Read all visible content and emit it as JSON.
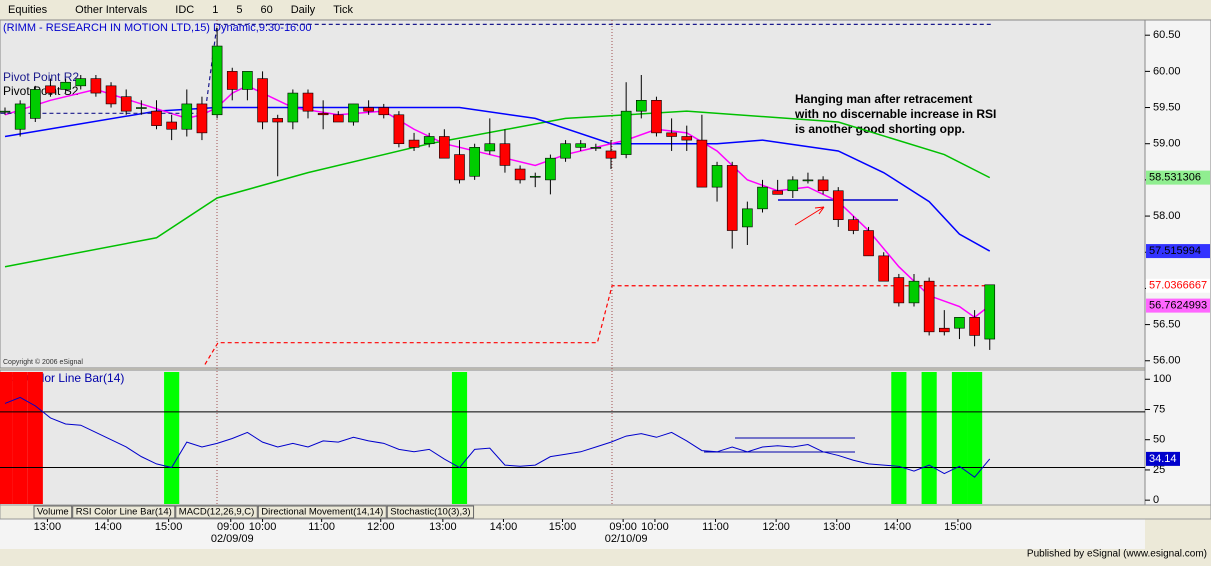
{
  "toolbar": {
    "items": [
      "Equities",
      "Other Intervals",
      "IDC",
      "1",
      "5",
      "60",
      "Daily",
      "Tick"
    ]
  },
  "chart_data": {
    "type": "candlestick",
    "title": "(RIMM - RESEARCH IN MOTION LTD,15) Dynamic,9:30-16:00",
    "copyright": "Copyright © 2006 eSignal",
    "annotation": [
      "Hanging man after retracement",
      "with no discernable increase in RSI",
      "is another good shorting opp."
    ],
    "pivot_labels": [
      "Pivot Point R2",
      "Pivot Point S2"
    ],
    "up_color": "#00cc00",
    "down_color": "#ff0000",
    "ylim": [
      55.9,
      60.71
    ],
    "yticks": [
      {
        "value": 56,
        "label": "56.00"
      },
      {
        "value": 56.5,
        "label": "56.50"
      },
      {
        "value": 57,
        "label": "57.00"
      },
      {
        "value": 57.5,
        "label": "57.50"
      },
      {
        "value": 58,
        "label": "58.00"
      },
      {
        "value": 58.5,
        "label": "58.50"
      },
      {
        "value": 59,
        "label": "59.00"
      },
      {
        "value": 59.5,
        "label": "59.50"
      },
      {
        "value": 60,
        "label": "60.00"
      },
      {
        "value": 60.5,
        "label": "60.50"
      }
    ],
    "candles": [
      [
        59.45,
        59.5,
        59.4,
        59.45
      ],
      [
        59.2,
        59.6,
        59.1,
        59.55
      ],
      [
        59.35,
        59.8,
        59.3,
        59.75
      ],
      [
        59.8,
        59.9,
        59.65,
        59.7
      ],
      [
        59.75,
        59.9,
        59.7,
        59.85
      ],
      [
        59.8,
        59.95,
        59.75,
        59.9
      ],
      [
        59.9,
        59.95,
        59.65,
        59.7
      ],
      [
        59.8,
        59.85,
        59.5,
        59.55
      ],
      [
        59.65,
        59.75,
        59.4,
        59.45
      ],
      [
        59.5,
        59.6,
        59.4,
        59.5
      ],
      [
        59.45,
        59.6,
        59.2,
        59.25
      ],
      [
        59.3,
        59.4,
        59.05,
        59.2
      ],
      [
        59.2,
        59.75,
        59.1,
        59.55
      ],
      [
        59.55,
        59.65,
        59.05,
        59.15
      ],
      [
        59.4,
        60.6,
        59.35,
        60.35
      ],
      [
        60,
        60.05,
        59.6,
        59.75
      ],
      [
        59.75,
        60,
        59.6,
        60
      ],
      [
        59.9,
        60,
        59.2,
        59.3
      ],
      [
        59.35,
        59.4,
        58.55,
        59.3
      ],
      [
        59.3,
        59.75,
        59.2,
        59.7
      ],
      [
        59.7,
        59.75,
        59.35,
        59.45
      ],
      [
        59.42,
        59.6,
        59.2,
        59.4
      ],
      [
        59.4,
        59.45,
        59.3,
        59.3
      ],
      [
        59.3,
        59.55,
        59.25,
        59.55
      ],
      [
        59.5,
        59.6,
        59.4,
        59.45
      ],
      [
        59.5,
        59.55,
        59.35,
        59.4
      ],
      [
        59.4,
        59.45,
        58.95,
        59
      ],
      [
        59.05,
        59.15,
        58.9,
        58.95
      ],
      [
        59,
        59.15,
        58.95,
        59.1
      ],
      [
        59.1,
        59.2,
        58.8,
        58.8
      ],
      [
        58.85,
        59.05,
        58.45,
        58.5
      ],
      [
        58.55,
        59,
        58.5,
        58.95
      ],
      [
        58.9,
        59.35,
        58.85,
        59
      ],
      [
        59,
        59.2,
        58.6,
        58.7
      ],
      [
        58.65,
        58.7,
        58.45,
        58.5
      ],
      [
        58.55,
        58.6,
        58.4,
        58.55
      ],
      [
        58.5,
        58.85,
        58.3,
        58.8
      ],
      [
        58.8,
        59.05,
        58.75,
        59
      ],
      [
        58.95,
        59.05,
        58.9,
        59
      ],
      [
        58.95,
        59,
        58.9,
        58.95
      ],
      [
        58.9,
        59.05,
        58.65,
        58.8
      ],
      [
        58.85,
        59.85,
        58.8,
        59.45
      ],
      [
        59.45,
        59.95,
        59.35,
        59.6
      ],
      [
        59.6,
        59.65,
        59.1,
        59.15
      ],
      [
        59.15,
        59.35,
        58.9,
        59.1
      ],
      [
        59.1,
        59.25,
        58.9,
        59.05
      ],
      [
        59.05,
        59.4,
        58.4,
        58.4
      ],
      [
        58.4,
        58.75,
        58.2,
        58.7
      ],
      [
        58.7,
        58.75,
        57.55,
        57.8
      ],
      [
        57.85,
        58.2,
        57.6,
        58.1
      ],
      [
        58.1,
        58.5,
        58.05,
        58.4
      ],
      [
        58.35,
        58.5,
        58.3,
        58.3
      ],
      [
        58.35,
        58.55,
        58.25,
        58.5
      ],
      [
        58.5,
        58.6,
        58.45,
        58.5
      ],
      [
        58.5,
        58.55,
        58.3,
        58.35
      ],
      [
        58.35,
        58.4,
        57.85,
        57.95
      ],
      [
        57.95,
        58,
        57.75,
        57.8
      ],
      [
        57.8,
        57.85,
        57.45,
        57.45
      ],
      [
        57.45,
        57.5,
        57.1,
        57.1
      ],
      [
        57.15,
        57.2,
        56.75,
        56.8
      ],
      [
        56.8,
        57.2,
        56.75,
        57.1
      ],
      [
        57.1,
        57.15,
        56.35,
        56.4
      ],
      [
        56.45,
        56.7,
        56.35,
        56.4
      ],
      [
        56.45,
        56.6,
        56.3,
        56.6
      ],
      [
        56.6,
        56.7,
        56.2,
        56.35
      ],
      [
        56.3,
        57.05,
        56.15,
        57.05
      ]
    ],
    "overlays": [
      {
        "color": "#00c000",
        "dash": false,
        "x": [
          0,
          10,
          14,
          20,
          28,
          37,
          45,
          55,
          62,
          65
        ],
        "values": [
          57.3,
          57.7,
          58.25,
          58.6,
          59,
          59.35,
          59.45,
          59.3,
          58.85,
          58.531306
        ],
        "last_label": "58.531306",
        "label_color": "#90ee90"
      },
      {
        "color": "#0000ff",
        "dash": false,
        "x": [
          0,
          10,
          14,
          22,
          30,
          35,
          40,
          47,
          50,
          55,
          58,
          61,
          63,
          65
        ],
        "values": [
          59.1,
          59.45,
          59.5,
          59.5,
          59.5,
          59.35,
          59,
          59,
          59.05,
          58.9,
          58.6,
          58.2,
          57.75,
          57.515994
        ],
        "last_label": "57.515994",
        "label_color": "#3333ff"
      },
      {
        "color": "#ff00ff",
        "dash": false,
        "x": [
          0,
          3,
          6,
          9,
          12,
          13,
          14,
          15,
          16,
          17,
          19,
          22,
          25,
          27,
          29,
          31,
          33,
          35,
          37,
          39,
          41,
          43,
          45,
          47,
          49,
          51,
          53,
          55,
          57,
          59,
          61,
          63,
          64,
          65
        ],
        "values": [
          59.4,
          59.6,
          59.75,
          59.55,
          59.35,
          59.4,
          59.5,
          59.7,
          59.8,
          59.7,
          59.5,
          59.4,
          59.45,
          59.2,
          59,
          58.9,
          58.8,
          58.7,
          58.85,
          58.95,
          59.05,
          59.2,
          59.15,
          58.9,
          58.5,
          58.35,
          58.4,
          58.2,
          57.8,
          57.3,
          56.9,
          56.75,
          56.6,
          56.7624993
        ],
        "last_label": "56.7624993",
        "label_color": "#ff66ff"
      },
      {
        "color": "#ff0000",
        "dash": true,
        "x": [
          13.2,
          14.06,
          39.1,
          40.07,
          65.2
        ],
        "values": [
          55.95,
          56.25,
          56.25,
          57.0366667,
          57.0366667
        ],
        "last_label": "57.0366667",
        "label_color": "#ffffff"
      },
      {
        "color": "#1a1a8c",
        "dash": true,
        "x": [
          -0.3,
          13.2,
          14,
          65.2
        ],
        "values": [
          59.42,
          59.42,
          60.65,
          60.65
        ]
      }
    ],
    "xticks": [
      {
        "value": 2.8,
        "label": "13:00"
      },
      {
        "value": 6.8,
        "label": "14:00"
      },
      {
        "value": 10.8,
        "label": "15:00"
      },
      {
        "value": 14.9,
        "label": "09:00"
      },
      {
        "value": 17,
        "label": "10:00"
      },
      {
        "value": 20.9,
        "label": "11:00"
      },
      {
        "value": 24.8,
        "label": "12:00"
      },
      {
        "value": 28.9,
        "label": "13:00"
      },
      {
        "value": 32.9,
        "label": "14:00"
      },
      {
        "value": 36.8,
        "label": "15:00"
      },
      {
        "value": 40.8,
        "label": "09:00"
      },
      {
        "value": 42.9,
        "label": "10:00"
      },
      {
        "value": 46.9,
        "label": "11:00"
      },
      {
        "value": 50.9,
        "label": "12:00"
      },
      {
        "value": 54.9,
        "label": "13:00"
      },
      {
        "value": 58.9,
        "label": "14:00"
      },
      {
        "value": 62.9,
        "label": "15:00"
      }
    ],
    "dates": [
      {
        "value": 15,
        "label": "02/09/09"
      },
      {
        "value": 41,
        "label": "02/10/09"
      }
    ],
    "rsi": {
      "title": "RSI Color Line Bar(14)",
      "ylim": [
        -4,
        106
      ],
      "yticks": [
        0,
        25,
        50,
        75,
        100
      ],
      "levels": [
        73,
        27
      ],
      "values": [
        80,
        85,
        78,
        68,
        63,
        62,
        56,
        50,
        44,
        36,
        30,
        27,
        48,
        44,
        47,
        51,
        56,
        48,
        44,
        47,
        44,
        49,
        48,
        52,
        49,
        47,
        42,
        40,
        42,
        34,
        27,
        42,
        43,
        29,
        28,
        29,
        36,
        38,
        40,
        44,
        48,
        53,
        55,
        52,
        56,
        49,
        41,
        40,
        44,
        40,
        44,
        45,
        44,
        46,
        40,
        37,
        33,
        30,
        29,
        28,
        24,
        29,
        22,
        28,
        19,
        34.14
      ],
      "last_label": "34.14",
      "bands": [
        {
          "index": 0,
          "color": "#ff0000"
        },
        {
          "index": 1,
          "color": "#ff0000"
        },
        {
          "index": 2,
          "color": "#ff0000"
        },
        {
          "index": 11,
          "color": "#00ff00"
        },
        {
          "index": 30,
          "color": "#00ff00"
        },
        {
          "index": 59,
          "color": "#00ff00"
        },
        {
          "index": 61,
          "color": "#00ff00"
        },
        {
          "index": 63,
          "color": "#00ff00"
        },
        {
          "index": 64,
          "color": "#00ff00"
        }
      ]
    }
  },
  "tabs": [
    "Volume",
    "RSI Color Line Bar(14)",
    "MACD(12,26,9,C)",
    "Directional Movement(14,14)",
    "Stochastic(10(3),3)"
  ],
  "footer": "Published by eSignal (www.esignal.com)"
}
